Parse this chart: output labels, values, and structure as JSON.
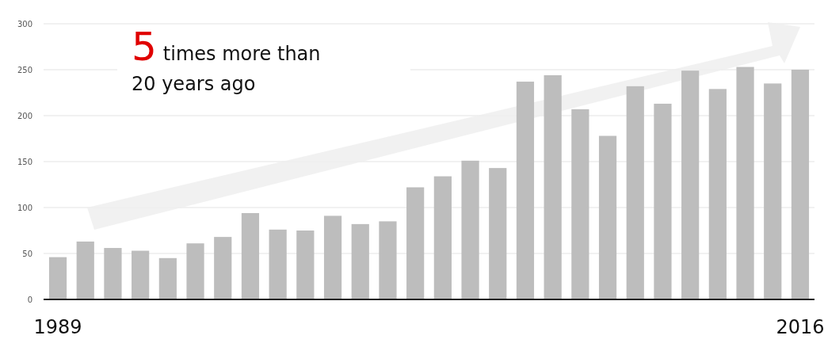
{
  "chart_data": {
    "type": "bar",
    "categories": [
      "1989",
      null,
      null,
      null,
      null,
      null,
      null,
      null,
      null,
      null,
      null,
      null,
      null,
      null,
      null,
      null,
      null,
      null,
      null,
      null,
      null,
      null,
      null,
      null,
      null,
      null,
      null,
      "2016"
    ],
    "values": [
      46,
      63,
      56,
      53,
      45,
      61,
      68,
      94,
      76,
      75,
      91,
      82,
      85,
      122,
      134,
      151,
      143,
      237,
      244,
      207,
      178,
      232,
      213,
      249,
      229,
      253,
      235,
      250
    ],
    "color": "#bdbdbd",
    "ylim": [
      0,
      300
    ],
    "yticks": [
      0,
      50,
      100,
      150,
      200,
      250,
      300
    ],
    "grid": "y",
    "annotations": [
      "5 times more than 20 years ago"
    ]
  }
}
